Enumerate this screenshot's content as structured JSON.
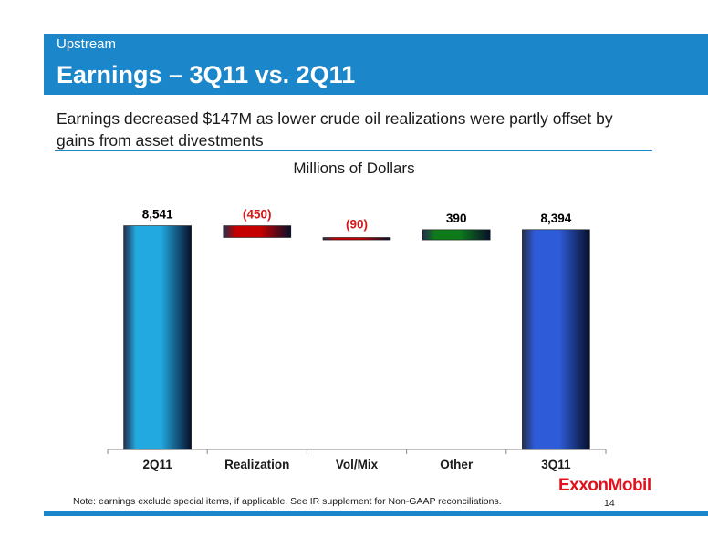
{
  "header": {
    "section": "Upstream",
    "title": "Earnings – 3Q11 vs. 2Q11"
  },
  "subtitle": "Earnings decreased $147M as lower crude oil realizations were partly offset by gains from asset divestments",
  "footer": {
    "logo": "ExxonMobil",
    "note": "Note: earnings exclude special items, if applicable. See IR supplement for Non-GAAP reconciliations.",
    "page_number": "14"
  },
  "colors": {
    "brand_blue": "#1b86c9",
    "negative_label": "#d11a1a",
    "logo_red": "#e3111d"
  },
  "chart_data": {
    "type": "bar",
    "subtype": "waterfall",
    "title": "Millions of Dollars",
    "categories": [
      "2Q11",
      "Realization",
      "Vol/Mix",
      "Other",
      "3Q11"
    ],
    "values": [
      8541,
      -450,
      -90,
      390,
      8394
    ],
    "labels": [
      "8,541",
      "(450)",
      "(90)",
      "390",
      "8,394"
    ],
    "kinds": [
      "total",
      "delta",
      "delta",
      "delta",
      "total"
    ],
    "colors": [
      "#22a9e0",
      "#c40000",
      "#c40000",
      "#0e7a19",
      "#2e5bd8"
    ],
    "label_colors": [
      "#000000",
      "#d11a1a",
      "#d11a1a",
      "#000000",
      "#000000"
    ],
    "ylim": [
      0,
      9500
    ],
    "grid": false,
    "legend": false
  }
}
